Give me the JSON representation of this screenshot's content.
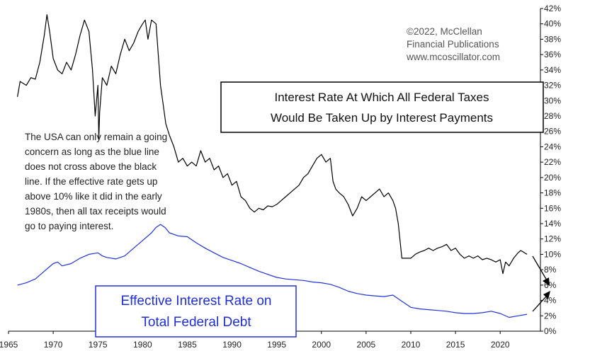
{
  "chart_data": {
    "type": "line",
    "title": "Interest Rate At Which All Federal Taxes Would Be Taken Up by Interest Payments",
    "title_lines": [
      "Interest Rate At Which All Federal Taxes",
      "Would Be Taken Up by Interest Payments"
    ],
    "credit_lines": [
      "©2022, McClellan",
      "Financial Publications",
      "www.mcoscillator.com"
    ],
    "annotation_lines": [
      "The USA can only remain a going",
      "concern as long as the blue line",
      "does not cross above the black",
      "line. If the effective rate gets up",
      "above 10% like it did in the early",
      "1980s, then all tax receipts would",
      "go to paying interest."
    ],
    "blue_label_lines": [
      "Effective Interest Rate on",
      "Total Federal Debt"
    ],
    "x_tick_labels": [
      "1965",
      "1970",
      "1975",
      "1980",
      "1985",
      "1990",
      "1995",
      "2000",
      "2005",
      "2010",
      "2015",
      "2020"
    ],
    "y_tick_labels": [
      "0%",
      "2%",
      "4%",
      "6%",
      "8%",
      "10%",
      "12%",
      "14%",
      "16%",
      "18%",
      "20%",
      "22%",
      "24%",
      "26%",
      "28%",
      "30%",
      "32%",
      "34%",
      "36%",
      "38%",
      "40%",
      "42%"
    ],
    "xlim": [
      1965,
      2024.5
    ],
    "ylim": [
      0,
      42
    ],
    "grid": false,
    "axis_side": "right",
    "series": [
      {
        "name": "Interest Rate At Which All Federal Taxes Would Be Taken Up by Interest Payments",
        "color": "#000000",
        "x": [
          1966,
          1966.3,
          1967,
          1967.5,
          1968,
          1968.5,
          1969,
          1969.3,
          1969.6,
          1970,
          1970.5,
          1971,
          1971.5,
          1972,
          1972.5,
          1973,
          1973.5,
          1974,
          1974.4,
          1974.7,
          1975,
          1975.1,
          1975.2,
          1975.5,
          1976,
          1976.5,
          1977,
          1977.5,
          1978,
          1978.5,
          1979,
          1979.5,
          1980,
          1980.3,
          1980.6,
          1981,
          1981.5,
          1982,
          1982.3,
          1982.6,
          1983,
          1983.5,
          1984,
          1984.5,
          1985,
          1985.5,
          1986,
          1986.5,
          1987,
          1987.5,
          1988,
          1988.5,
          1989,
          1989.5,
          1990,
          1990.5,
          1991,
          1991.5,
          1992,
          1992.5,
          1993,
          1993.5,
          1994,
          1994.5,
          1995,
          1995.5,
          1996,
          1996.5,
          1997,
          1997.5,
          1998,
          1998.5,
          1999,
          1999.5,
          2000,
          2000.5,
          2001,
          2001.3,
          2001.6,
          2002,
          2002.5,
          2003,
          2003.5,
          2004,
          2004.5,
          2005,
          2005.5,
          2006,
          2006.5,
          2007,
          2007.5,
          2008,
          2008.3,
          2008.6,
          2009,
          2009.5,
          2010,
          2010.5,
          2011,
          2011.5,
          2012,
          2012.5,
          2013,
          2013.5,
          2014,
          2014.5,
          2015,
          2015.5,
          2016,
          2016.5,
          2017,
          2017.5,
          2018,
          2018.5,
          2019,
          2019.5,
          2020,
          2020.3,
          2020.6,
          2021,
          2021.5,
          2022,
          2022.3,
          2022.6,
          2023
        ],
        "values": [
          30.5,
          32.5,
          32.0,
          33.0,
          32.8,
          35.0,
          38.5,
          41.2,
          39.0,
          35.5,
          34.0,
          33.5,
          35.0,
          34.0,
          36.0,
          38.5,
          40.5,
          39.0,
          34.0,
          28.0,
          32.0,
          25.0,
          28.5,
          33.0,
          32.0,
          34.5,
          33.5,
          36.0,
          38.0,
          36.5,
          37.5,
          39.0,
          40.0,
          40.5,
          38.0,
          40.5,
          40.0,
          32.0,
          29.5,
          27.0,
          25.5,
          24.0,
          22.0,
          22.5,
          21.5,
          22.0,
          21.5,
          23.5,
          22.0,
          22.5,
          21.0,
          21.5,
          20.0,
          20.5,
          19.0,
          19.5,
          17.5,
          17.0,
          16.0,
          15.5,
          16.0,
          15.8,
          16.3,
          16.2,
          16.5,
          17.0,
          17.5,
          18.0,
          18.5,
          19.0,
          20.0,
          20.5,
          21.5,
          22.5,
          23.0,
          22.0,
          22.5,
          19.5,
          18.5,
          18.0,
          17.5,
          16.5,
          15.0,
          16.0,
          17.5,
          17.0,
          17.5,
          18.0,
          18.5,
          17.5,
          18.0,
          17.0,
          16.0,
          14.0,
          9.5,
          9.5,
          9.5,
          10.0,
          10.3,
          10.5,
          10.8,
          10.5,
          10.8,
          11.0,
          11.3,
          10.5,
          10.8,
          10.0,
          9.5,
          9.8,
          9.5,
          9.8,
          9.3,
          9.5,
          9.3,
          9.0,
          9.3,
          7.5,
          9.0,
          8.5,
          9.5,
          10.2,
          10.5,
          10.3,
          10.0
        ]
      },
      {
        "name": "Effective Interest Rate on Total Federal Debt",
        "color": "#2233d6",
        "x": [
          1966,
          1967,
          1968,
          1969,
          1970,
          1970.5,
          1971,
          1972,
          1973,
          1974,
          1975,
          1975.5,
          1976,
          1977,
          1978,
          1979,
          1980,
          1981,
          1981.5,
          1982,
          1982.5,
          1983,
          1984,
          1985,
          1986,
          1987,
          1988,
          1989,
          1990,
          1991,
          1992,
          1993,
          1994,
          1995,
          1996,
          1997,
          1998,
          1999,
          2000,
          2001,
          2002,
          2003,
          2004,
          2005,
          2006,
          2007,
          2008,
          2009,
          2010,
          2011,
          2012,
          2013,
          2014,
          2015,
          2016,
          2017,
          2018,
          2019,
          2020,
          2021,
          2022,
          2023
        ],
        "values": [
          6.0,
          6.3,
          6.8,
          7.8,
          8.8,
          9.0,
          8.5,
          8.8,
          9.5,
          10.0,
          10.2,
          9.8,
          9.6,
          9.4,
          9.8,
          10.8,
          11.8,
          12.8,
          13.5,
          13.9,
          13.5,
          12.8,
          12.4,
          12.3,
          11.5,
          10.8,
          10.2,
          9.6,
          9.2,
          8.8,
          8.3,
          7.8,
          7.4,
          7.0,
          6.8,
          6.7,
          6.6,
          6.4,
          6.3,
          6.1,
          5.7,
          5.2,
          4.9,
          4.7,
          4.6,
          4.5,
          4.7,
          3.9,
          3.1,
          2.9,
          2.8,
          2.7,
          2.6,
          2.4,
          2.3,
          2.3,
          2.4,
          2.6,
          2.3,
          1.8,
          2.0,
          2.2
        ]
      }
    ]
  }
}
